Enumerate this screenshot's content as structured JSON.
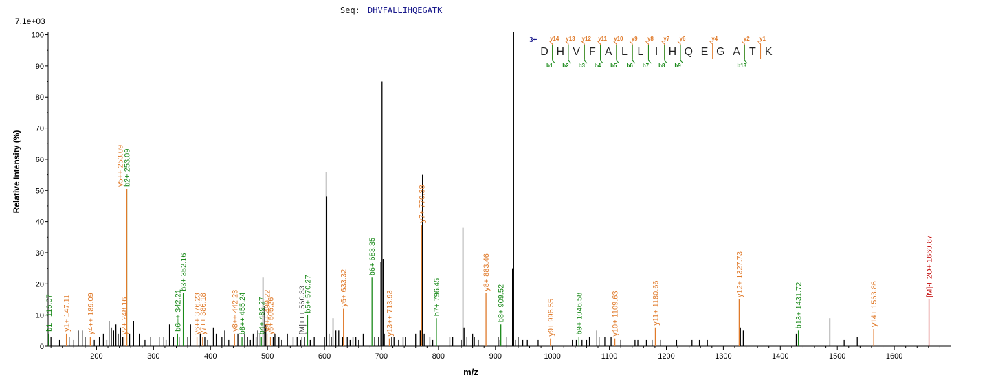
{
  "header": {
    "seq_label": "Seq:",
    "sequence": "DHVFALLIHQEGATK",
    "max_intensity": "7.1e+03"
  },
  "colors": {
    "b": "#1a8a1a",
    "y": "#e07a2a",
    "precursor": "#c00000",
    "unassigned": "#000000",
    "seq_text": "#1a1a8c"
  },
  "chart_data": {
    "type": "bar",
    "title": "",
    "xlabel": "m/z",
    "ylabel": "Relative   Intensity (%)",
    "xlim": [
      115,
      1700
    ],
    "ylim": [
      0,
      101
    ],
    "xticks": [
      200,
      300,
      400,
      500,
      600,
      700,
      800,
      900,
      1000,
      1100,
      1200,
      1300,
      1400,
      1500,
      1600
    ],
    "yticks": [
      0,
      10,
      20,
      30,
      40,
      50,
      60,
      70,
      80,
      90,
      100
    ],
    "grid": false,
    "annotated_peaks": [
      {
        "mz": 116.07,
        "intensity": 4,
        "type": "b",
        "label": "b1+ 116.07"
      },
      {
        "mz": 147.11,
        "intensity": 4,
        "type": "y",
        "label": "y1+ 147.11"
      },
      {
        "mz": 189.09,
        "intensity": 3,
        "type": "y",
        "label": "y4++ 189.09"
      },
      {
        "mz": 248.16,
        "intensity": 3,
        "type": "y",
        "label": "y2+ 248.16"
      },
      {
        "mz": 253.09,
        "intensity": 50.5,
        "type": "b",
        "label": "b2+ 253.09"
      },
      {
        "mz": 253.09,
        "intensity": 50.5,
        "type": "y",
        "label": "y5++ 253.09"
      },
      {
        "mz": 342.21,
        "intensity": 4,
        "type": "b",
        "label": "b6++ 342.21"
      },
      {
        "mz": 352.16,
        "intensity": 17,
        "type": "b",
        "label": "b3+ 352.16"
      },
      {
        "mz": 376.23,
        "intensity": 3,
        "type": "y",
        "label": "y6++ 376.23"
      },
      {
        "mz": 386.18,
        "intensity": 3,
        "type": "y",
        "label": "y7++ 386.18"
      },
      {
        "mz": 442.23,
        "intensity": 4,
        "type": "y",
        "label": "y8++ 442.23"
      },
      {
        "mz": 455.24,
        "intensity": 3,
        "type": "b",
        "label": "b8++ 455.24"
      },
      {
        "mz": 489.27,
        "intensity": 3,
        "type": "b",
        "label": "b4+ 489.27"
      },
      {
        "mz": 499.22,
        "intensity": 4,
        "type": "y",
        "label": "y9++ 499.22"
      },
      {
        "mz": 505.26,
        "intensity": 3,
        "type": "y",
        "label": "y5+ 505.26"
      },
      {
        "mz": 560.33,
        "intensity": 3,
        "type": "u",
        "label": "[M]+++ 560.33"
      },
      {
        "mz": 570.27,
        "intensity": 10,
        "type": "b",
        "label": "b5+ 570.27"
      },
      {
        "mz": 633.32,
        "intensity": 12,
        "type": "y",
        "label": "y6+ 633.32"
      },
      {
        "mz": 683.35,
        "intensity": 22,
        "type": "b",
        "label": "b6+ 683.35"
      },
      {
        "mz": 713.93,
        "intensity": 2.5,
        "type": "y",
        "label": "y13++ 713.93"
      },
      {
        "mz": 770.38,
        "intensity": 39,
        "type": "y",
        "label": "y7+ 770.38"
      },
      {
        "mz": 796.45,
        "intensity": 9,
        "type": "b",
        "label": "b7+ 796.45"
      },
      {
        "mz": 883.46,
        "intensity": 17,
        "type": "y",
        "label": "y8+ 883.46"
      },
      {
        "mz": 909.52,
        "intensity": 7,
        "type": "b",
        "label": "b8+ 909.52"
      },
      {
        "mz": 996.55,
        "intensity": 2.5,
        "type": "y",
        "label": "y9+ 996.55"
      },
      {
        "mz": 1046.58,
        "intensity": 3,
        "type": "b",
        "label": "b9+ 1046.58"
      },
      {
        "mz": 1109.63,
        "intensity": 2.5,
        "type": "y",
        "label": "y10+ 1109.63"
      },
      {
        "mz": 1180.66,
        "intensity": 6,
        "type": "y",
        "label": "y11+ 1180.66"
      },
      {
        "mz": 1327.73,
        "intensity": 15,
        "type": "y",
        "label": "y12+ 1327.73"
      },
      {
        "mz": 1431.72,
        "intensity": 5,
        "type": "b",
        "label": "b13+ 1431.72"
      },
      {
        "mz": 1563.86,
        "intensity": 5.5,
        "type": "y",
        "label": "y14+ 1563.86"
      },
      {
        "mz": 1660.87,
        "intensity": 15,
        "type": "p",
        "label": "[M]-H2O+ 1660.87"
      }
    ],
    "unassigned_peaks": [
      [
        120,
        3
      ],
      [
        135,
        2
      ],
      [
        152,
        3
      ],
      [
        160,
        2
      ],
      [
        168,
        5
      ],
      [
        175,
        5
      ],
      [
        180,
        3
      ],
      [
        196,
        2
      ],
      [
        205,
        3
      ],
      [
        212,
        4
      ],
      [
        218,
        2
      ],
      [
        222,
        8
      ],
      [
        226,
        6
      ],
      [
        230,
        5
      ],
      [
        234,
        7
      ],
      [
        238,
        4
      ],
      [
        242,
        6
      ],
      [
        246,
        3
      ],
      [
        258,
        4
      ],
      [
        265,
        8
      ],
      [
        275,
        4
      ],
      [
        285,
        2
      ],
      [
        295,
        3
      ],
      [
        310,
        3
      ],
      [
        318,
        3
      ],
      [
        322,
        2
      ],
      [
        328,
        7
      ],
      [
        335,
        3
      ],
      [
        345,
        3
      ],
      [
        360,
        3
      ],
      [
        365,
        7
      ],
      [
        382,
        4
      ],
      [
        390,
        3
      ],
      [
        395,
        2
      ],
      [
        405,
        6
      ],
      [
        410,
        4
      ],
      [
        420,
        3
      ],
      [
        425,
        5
      ],
      [
        432,
        2
      ],
      [
        448,
        4
      ],
      [
        460,
        4
      ],
      [
        465,
        3
      ],
      [
        470,
        2
      ],
      [
        475,
        4
      ],
      [
        480,
        3
      ],
      [
        483,
        5
      ],
      [
        487,
        4
      ],
      [
        492,
        22
      ],
      [
        495,
        13
      ],
      [
        497,
        7
      ],
      [
        510,
        3
      ],
      [
        513,
        4
      ],
      [
        520,
        3
      ],
      [
        525,
        2
      ],
      [
        535,
        4
      ],
      [
        545,
        3
      ],
      [
        552,
        3
      ],
      [
        558,
        2
      ],
      [
        565,
        3
      ],
      [
        575,
        2
      ],
      [
        582,
        3
      ],
      [
        600,
        3
      ],
      [
        603,
        56
      ],
      [
        604,
        48
      ],
      [
        608,
        4
      ],
      [
        612,
        3
      ],
      [
        615,
        9
      ],
      [
        620,
        5
      ],
      [
        625,
        5
      ],
      [
        632,
        3
      ],
      [
        640,
        3
      ],
      [
        645,
        2
      ],
      [
        650,
        3
      ],
      [
        655,
        3
      ],
      [
        660,
        2
      ],
      [
        668,
        4
      ],
      [
        688,
        3
      ],
      [
        695,
        3
      ],
      [
        699,
        27
      ],
      [
        701,
        85
      ],
      [
        703,
        28
      ],
      [
        705,
        4
      ],
      [
        718,
        3
      ],
      [
        722,
        3
      ],
      [
        730,
        2
      ],
      [
        738,
        3
      ],
      [
        742,
        3
      ],
      [
        760,
        4
      ],
      [
        768,
        5
      ],
      [
        772,
        55
      ],
      [
        775,
        4
      ],
      [
        785,
        3
      ],
      [
        790,
        2
      ],
      [
        820,
        3
      ],
      [
        825,
        3
      ],
      [
        840,
        2
      ],
      [
        843,
        38
      ],
      [
        845,
        6
      ],
      [
        850,
        3
      ],
      [
        860,
        4
      ],
      [
        863,
        3
      ],
      [
        870,
        2
      ],
      [
        905,
        3
      ],
      [
        908,
        2
      ],
      [
        920,
        3
      ],
      [
        930,
        25
      ],
      [
        932,
        101
      ],
      [
        935,
        2
      ],
      [
        940,
        3
      ],
      [
        948,
        2
      ],
      [
        956,
        2
      ],
      [
        975,
        2
      ],
      [
        1035,
        2
      ],
      [
        1042,
        2
      ],
      [
        1052,
        2
      ],
      [
        1060,
        2
      ],
      [
        1065,
        3
      ],
      [
        1078,
        5
      ],
      [
        1082,
        3
      ],
      [
        1092,
        3
      ],
      [
        1103,
        3
      ],
      [
        1120,
        2
      ],
      [
        1145,
        2
      ],
      [
        1150,
        2
      ],
      [
        1165,
        2
      ],
      [
        1175,
        2
      ],
      [
        1190,
        2
      ],
      [
        1218,
        2
      ],
      [
        1245,
        2
      ],
      [
        1258,
        2
      ],
      [
        1272,
        2
      ],
      [
        1330,
        6
      ],
      [
        1335,
        5
      ],
      [
        1428,
        4
      ],
      [
        1487,
        9
      ],
      [
        1512,
        2
      ],
      [
        1535,
        3
      ]
    ]
  },
  "fragment_map": {
    "charge": "3+",
    "residues": [
      "D",
      "H",
      "V",
      "F",
      "A",
      "L",
      "L",
      "I",
      "H",
      "Q",
      "E",
      "G",
      "A",
      "T",
      "K"
    ],
    "y_ions": [
      {
        "label": "y14",
        "after": 0
      },
      {
        "label": "y13",
        "after": 1
      },
      {
        "label": "y12",
        "after": 2
      },
      {
        "label": "y11",
        "after": 3
      },
      {
        "label": "y10",
        "after": 4
      },
      {
        "label": "y9",
        "after": 5
      },
      {
        "label": "y8",
        "after": 6
      },
      {
        "label": "y7",
        "after": 7
      },
      {
        "label": "y6",
        "after": 8
      },
      {
        "label": "y4",
        "after": 10
      },
      {
        "label": "y2",
        "after": 12
      },
      {
        "label": "y1",
        "after": 13
      }
    ],
    "b_ions": [
      {
        "label": "b1",
        "after": 0
      },
      {
        "label": "b2",
        "after": 1
      },
      {
        "label": "b3",
        "after": 2
      },
      {
        "label": "b4",
        "after": 3
      },
      {
        "label": "b5",
        "after": 4
      },
      {
        "label": "b6",
        "after": 5
      },
      {
        "label": "b7",
        "after": 6
      },
      {
        "label": "b8",
        "after": 7
      },
      {
        "label": "b9",
        "after": 8
      },
      {
        "label": "b13",
        "after": 12
      }
    ]
  }
}
